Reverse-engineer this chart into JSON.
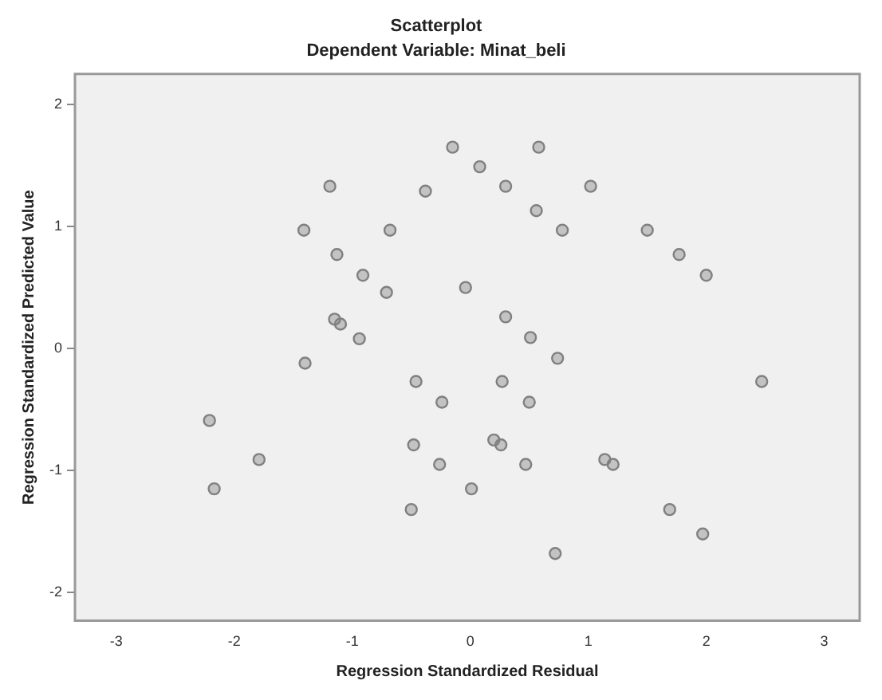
{
  "chart_data": {
    "type": "scatter",
    "title": "Scatterplot",
    "subtitle": "Dependent Variable: Minat_beli",
    "xlabel": "Regression Standardized Residual",
    "ylabel": "Regression Standardized Predicted Value",
    "xlim": [
      -3.35,
      3.3
    ],
    "ylim": [
      -2.23,
      2.25
    ],
    "xticks": [
      -3,
      -2,
      -1,
      0,
      1,
      2,
      3
    ],
    "yticks": [
      -2,
      -1,
      0,
      1,
      2
    ],
    "grid": false,
    "legend": false,
    "marker": "circle",
    "series": [
      {
        "color": "#808080",
        "x": [
          -0.15,
          0.58,
          0.08,
          -1.19,
          0.3,
          1.02,
          -0.38,
          0.56,
          -1.41,
          -0.68,
          0.78,
          1.5,
          -1.13,
          1.77,
          -0.91,
          2.0,
          -0.71,
          -0.04,
          -1.15,
          -1.1,
          0.3,
          -0.94,
          0.51,
          -1.4,
          0.74,
          -0.46,
          0.27,
          2.47,
          -0.24,
          0.5,
          -2.21,
          -1.79,
          -0.48,
          0.2,
          0.26,
          -0.26,
          0.47,
          1.14,
          1.21,
          -2.17,
          0.01,
          -0.5,
          1.69,
          1.97,
          0.72
        ],
        "values": [
          1.65,
          1.65,
          1.49,
          1.33,
          1.33,
          1.33,
          1.29,
          1.13,
          0.97,
          0.97,
          0.97,
          0.97,
          0.77,
          0.77,
          0.6,
          0.6,
          0.46,
          0.5,
          0.24,
          0.2,
          0.26,
          0.08,
          0.09,
          -0.12,
          -0.08,
          -0.27,
          -0.27,
          -0.27,
          -0.44,
          -0.44,
          -0.59,
          -0.91,
          -0.79,
          -0.75,
          -0.79,
          -0.95,
          -0.95,
          -0.91,
          -0.95,
          -1.15,
          -1.15,
          -1.32,
          -1.32,
          -1.52,
          -1.68
        ]
      }
    ]
  }
}
